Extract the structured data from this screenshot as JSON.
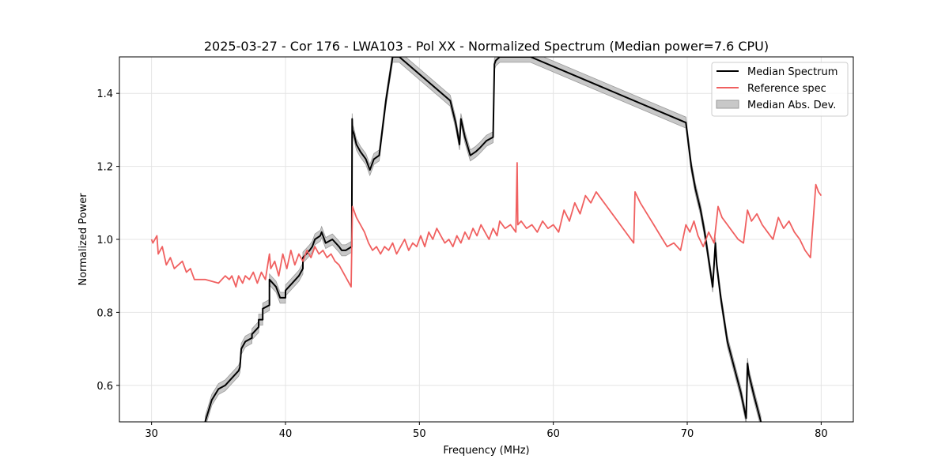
{
  "chart_data": {
    "type": "line",
    "title": "2025-03-27 - Cor 176 - LWA103 - Pol XX - Normalized Spectrum (Median power=7.6 CPU)",
    "xlabel": "Frequency (MHz)",
    "ylabel": "Normalized Power",
    "xlim": [
      27.6,
      82.4
    ],
    "ylim": [
      0.5,
      1.5
    ],
    "xticks": [
      30,
      40,
      50,
      60,
      70,
      80
    ],
    "yticks": [
      0.6,
      0.8,
      1.0,
      1.2,
      1.4
    ],
    "grid": true,
    "legend_position": "top-right",
    "colors": {
      "median": "#000000",
      "reference": "#f06060",
      "mad_fill": "#c8c8c8",
      "mad_edge": "#9a9a9a",
      "grid": "#e4e4e4"
    },
    "series": [
      {
        "name": "Median Spectrum",
        "x": [
          34.0,
          34.5,
          35.0,
          35.5,
          36.0,
          36.5,
          36.6,
          36.7,
          37.0,
          37.5,
          37.5,
          38.0,
          38.0,
          38.3,
          38.3,
          38.8,
          38.8,
          39.3,
          39.6,
          40.0,
          40.0,
          40.5,
          41.0,
          41.3,
          41.3,
          41.8,
          42.0,
          42.2,
          42.6,
          42.7,
          42.9,
          43.0,
          43.5,
          44.0,
          44.2,
          44.5,
          44.95,
          44.98,
          45.0,
          45.1,
          45.3,
          45.6,
          46.0,
          46.3,
          46.6,
          47.0,
          47.5,
          48.0,
          48.5,
          52.3,
          52.7,
          53.0,
          53.1,
          53.4,
          53.8,
          54.2,
          54.5,
          55.0,
          55.5,
          55.6,
          55.7,
          56.0,
          57.0,
          58.0,
          58.3,
          69.9,
          70.3,
          70.6,
          71.0,
          71.3,
          71.5,
          71.7,
          71.9,
          72.1,
          72.2,
          72.5,
          73.0,
          73.5,
          74.0,
          74.4,
          74.5,
          74.6,
          75.0,
          75.5
        ],
        "y": [
          0.5,
          0.56,
          0.59,
          0.6,
          0.62,
          0.64,
          0.65,
          0.7,
          0.72,
          0.73,
          0.74,
          0.76,
          0.78,
          0.78,
          0.81,
          0.82,
          0.89,
          0.87,
          0.84,
          0.84,
          0.86,
          0.88,
          0.9,
          0.92,
          0.95,
          0.97,
          0.98,
          1.0,
          1.01,
          1.02,
          1.0,
          0.99,
          1.0,
          0.98,
          0.97,
          0.97,
          0.98,
          1.33,
          1.3,
          1.29,
          1.26,
          1.24,
          1.22,
          1.19,
          1.22,
          1.23,
          1.38,
          1.5,
          1.5,
          1.38,
          1.32,
          1.26,
          1.33,
          1.28,
          1.23,
          1.24,
          1.25,
          1.27,
          1.28,
          1.48,
          1.49,
          1.5,
          1.5,
          1.5,
          1.5,
          1.32,
          1.2,
          1.14,
          1.08,
          1.02,
          0.97,
          0.92,
          0.87,
          0.99,
          0.93,
          0.84,
          0.72,
          0.65,
          0.58,
          0.51,
          0.66,
          0.63,
          0.57,
          0.5
        ],
        "mad": 0.015
      },
      {
        "name": "Reference spec",
        "x": [
          30.0,
          30.1,
          30.4,
          30.5,
          30.8,
          31.1,
          31.4,
          31.7,
          32.0,
          32.3,
          32.6,
          32.9,
          33.2,
          33.5,
          34.0,
          35.0,
          35.5,
          35.8,
          36.0,
          36.3,
          36.5,
          36.8,
          37.0,
          37.3,
          37.6,
          37.9,
          38.2,
          38.5,
          38.8,
          38.9,
          39.2,
          39.5,
          39.8,
          40.1,
          40.4,
          40.7,
          41.0,
          41.3,
          41.6,
          41.9,
          42.2,
          42.5,
          42.8,
          43.1,
          43.4,
          43.7,
          44.0,
          44.3,
          44.6,
          44.9,
          45.0,
          45.3,
          45.6,
          45.9,
          46.2,
          46.5,
          46.8,
          47.1,
          47.4,
          47.7,
          48.0,
          48.3,
          48.6,
          48.9,
          49.2,
          49.5,
          49.8,
          50.1,
          50.4,
          50.7,
          51.0,
          51.3,
          51.6,
          51.9,
          52.2,
          52.5,
          52.8,
          53.1,
          53.4,
          53.7,
          54.0,
          54.3,
          54.6,
          54.9,
          55.2,
          55.5,
          55.8,
          56.0,
          56.4,
          56.8,
          57.2,
          57.3,
          57.35,
          57.6,
          58.0,
          58.4,
          58.8,
          59.2,
          59.6,
          60.0,
          60.4,
          60.8,
          61.2,
          61.6,
          62.0,
          62.4,
          62.8,
          63.2,
          63.6,
          64.0,
          64.4,
          64.8,
          65.2,
          65.6,
          66.0,
          66.1,
          66.5,
          67.0,
          67.5,
          68.0,
          68.5,
          69.0,
          69.5,
          69.9,
          70.2,
          70.5,
          70.8,
          71.2,
          71.6,
          72.0,
          72.3,
          72.6,
          73.0,
          73.4,
          73.8,
          74.2,
          74.5,
          74.8,
          75.2,
          75.6,
          76.0,
          76.4,
          76.8,
          77.2,
          77.6,
          78.0,
          78.4,
          78.8,
          79.2,
          79.6,
          79.8,
          80.0
        ],
        "y": [
          1.0,
          0.99,
          1.01,
          0.96,
          0.98,
          0.93,
          0.95,
          0.92,
          0.93,
          0.94,
          0.91,
          0.92,
          0.89,
          0.89,
          0.89,
          0.88,
          0.9,
          0.89,
          0.9,
          0.87,
          0.9,
          0.88,
          0.9,
          0.89,
          0.91,
          0.88,
          0.91,
          0.89,
          0.96,
          0.92,
          0.94,
          0.9,
          0.96,
          0.92,
          0.97,
          0.93,
          0.96,
          0.94,
          0.97,
          0.95,
          0.98,
          0.96,
          0.97,
          0.95,
          0.96,
          0.94,
          0.93,
          0.91,
          0.89,
          0.87,
          1.09,
          1.06,
          1.04,
          1.02,
          0.99,
          0.97,
          0.98,
          0.96,
          0.98,
          0.97,
          0.99,
          0.96,
          0.98,
          1.0,
          0.97,
          0.99,
          0.98,
          1.01,
          0.98,
          1.02,
          1.0,
          1.03,
          1.01,
          0.99,
          1.0,
          0.98,
          1.01,
          0.99,
          1.02,
          1.0,
          1.03,
          1.01,
          1.04,
          1.02,
          1.0,
          1.03,
          1.01,
          1.05,
          1.03,
          1.04,
          1.02,
          1.21,
          1.04,
          1.05,
          1.03,
          1.04,
          1.02,
          1.05,
          1.03,
          1.04,
          1.02,
          1.08,
          1.05,
          1.1,
          1.07,
          1.12,
          1.1,
          1.13,
          1.11,
          1.09,
          1.07,
          1.05,
          1.03,
          1.01,
          0.99,
          1.13,
          1.1,
          1.07,
          1.04,
          1.01,
          0.98,
          0.99,
          0.97,
          1.04,
          1.02,
          1.05,
          1.01,
          0.98,
          1.02,
          0.99,
          1.09,
          1.06,
          1.04,
          1.02,
          1.0,
          0.99,
          1.08,
          1.05,
          1.07,
          1.04,
          1.02,
          1.0,
          1.06,
          1.03,
          1.05,
          1.02,
          1.0,
          0.97,
          0.95,
          1.15,
          1.13,
          1.12
        ]
      },
      {
        "name": "Median Abs. Dev.",
        "role": "band around Median Spectrum"
      }
    ]
  }
}
